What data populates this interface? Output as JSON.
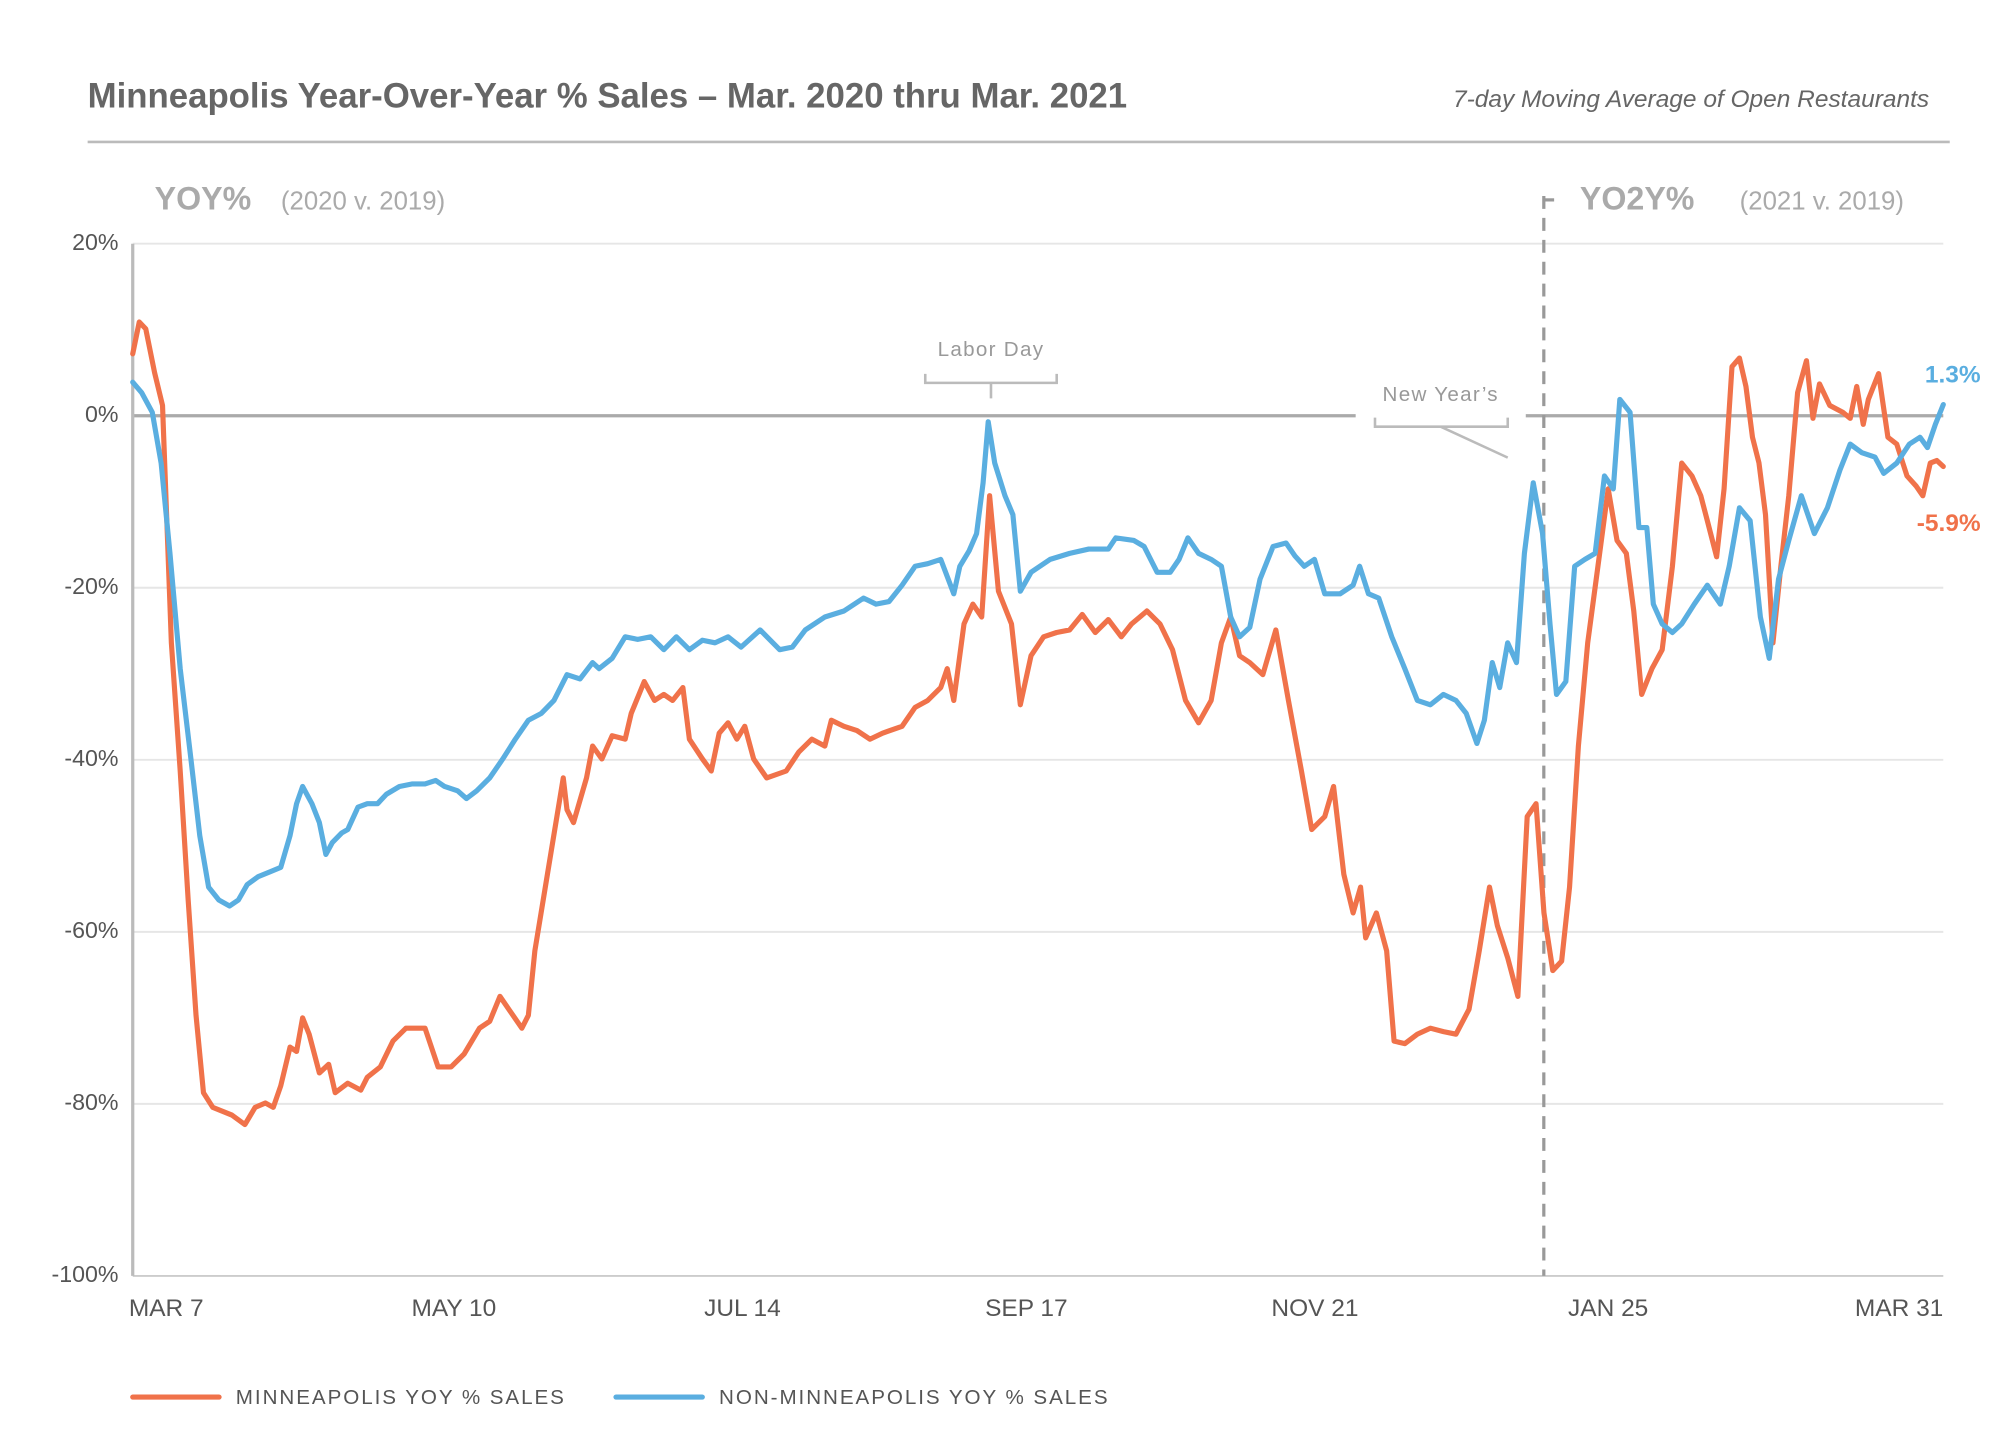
{
  "chart_data": {
    "type": "line",
    "title": "Minneapolis Year-Over-Year % Sales – Mar. 2020 thru Mar. 2021",
    "subtitle": "7-day Moving Average of Open Restaurants",
    "section_labels": [
      {
        "title": "YOY%",
        "note": "(2020 v. 2019)"
      },
      {
        "title": "YO2Y%",
        "note": "(2021 v. 2019)"
      }
    ],
    "annotations": [
      "Labor Day",
      "New Year’s"
    ],
    "xlim": [
      0,
      389
    ],
    "xticks": [
      {
        "value": 0,
        "label": "MAR 7"
      },
      {
        "value": 69,
        "label": "MAY 10"
      },
      {
        "value": 131,
        "label": "JUL 14"
      },
      {
        "value": 192,
        "label": "SEP 17"
      },
      {
        "value": 254,
        "label": "NOV 21"
      },
      {
        "value": 317,
        "label": "JAN 25"
      },
      {
        "value": 389,
        "label": "MAR 31"
      }
    ],
    "ylim": [
      -100,
      20
    ],
    "yticks": [
      {
        "value": 20,
        "label": "20%"
      },
      {
        "value": 0,
        "label": "0%"
      },
      {
        "value": -20,
        "label": "-20%"
      },
      {
        "value": -40,
        "label": "-40%"
      },
      {
        "value": -60,
        "label": "-60%"
      },
      {
        "value": -80,
        "label": "-80%"
      },
      {
        "value": -100,
        "label": "-100%"
      }
    ],
    "grid": true,
    "series": [
      {
        "name": "MINNEAPOLIS YOY % SALES",
        "color": "#f0724a",
        "end_label": "-5.9%",
        "x": [
          0,
          1.4,
          2.8,
          4.7,
          6.4,
          8.3,
          10.2,
          11.9,
          13.6,
          15.2,
          17.2,
          21.3,
          24.1,
          26.3,
          28.5,
          30.2,
          31.8,
          33.8,
          35.2,
          36.5,
          37.9,
          40.1,
          42.1,
          43.5,
          46.2,
          49.0,
          50.4,
          53.2,
          55.9,
          58.7,
          62.8,
          65.6,
          68.4,
          71.2,
          74.5,
          76.7,
          78.9,
          80.8,
          83.6,
          85.0,
          86.4,
          89.1,
          92.5,
          93.3,
          94.7,
          97.5,
          98.8,
          100.8,
          103.0,
          105.8,
          107.1,
          109.9,
          112.1,
          114.1,
          116.0,
          118.2,
          119.6,
          122.4,
          124.3,
          126.0,
          127.9,
          129.8,
          131.5,
          133.4,
          136.2,
          140.4,
          143.1,
          145.9,
          148.7,
          150.1,
          152.8,
          155.6,
          158.4,
          161.1,
          165.3,
          168.1,
          170.8,
          173.6,
          175.0,
          176.4,
          178.6,
          180.5,
          182.4,
          184.1,
          186.0,
          188.8,
          190.7,
          193.0,
          195.7,
          198.5,
          201.3,
          204.0,
          206.8,
          209.6,
          212.4,
          214.6,
          217.9,
          220.7,
          223.4,
          226.2,
          229.0,
          231.7,
          233.9,
          235.9,
          237.8,
          240.0,
          242.8,
          245.6,
          248.3,
          251.1,
          253.3,
          256.1,
          258.0,
          260.2,
          262.2,
          263.8,
          264.9,
          267.2,
          269.4,
          271.0,
          273.3,
          276.0,
          278.8,
          281.6,
          284.3,
          287.1,
          289.3,
          291.5,
          293.2,
          295.4,
          297.6,
          299.6,
          301.5,
          303.2,
          305.1,
          307.0,
          308.7,
          310.6,
          312.6,
          314.8,
          317.0,
          318.9,
          320.9,
          322.5,
          324.2,
          326.4,
          328.6,
          330.8,
          332.8,
          335.0,
          336.9,
          338.3,
          340.3,
          341.9,
          343.6,
          345.2,
          346.6,
          348.0,
          349.4,
          350.8,
          352.4,
          354.1,
          355.8,
          357.7,
          359.6,
          361.0,
          362.4,
          364.6,
          367.4,
          369.0,
          370.4,
          371.8,
          372.9,
          375.1,
          377.1,
          379.0,
          381.2,
          383.2,
          384.6,
          386.2,
          387.6,
          389
        ],
        "values": [
          7.2,
          10.9,
          10.1,
          5.0,
          1.2,
          -26.4,
          -41.3,
          -56.2,
          -69.7,
          -78.7,
          -80.4,
          -81.3,
          -82.4,
          -80.4,
          -79.9,
          -80.4,
          -77.9,
          -73.4,
          -73.9,
          -70.0,
          -71.9,
          -76.4,
          -75.4,
          -78.7,
          -77.6,
          -78.4,
          -76.9,
          -75.7,
          -72.7,
          -71.2,
          -71.2,
          -75.7,
          -75.7,
          -74.2,
          -71.2,
          -70.4,
          -67.5,
          -69.0,
          -71.2,
          -69.7,
          -62.2,
          -53.3,
          -42.1,
          -45.8,
          -47.3,
          -42.1,
          -38.4,
          -39.9,
          -37.2,
          -37.6,
          -34.6,
          -30.9,
          -33.1,
          -32.4,
          -33.1,
          -31.6,
          -37.6,
          -39.9,
          -41.3,
          -36.9,
          -35.7,
          -37.6,
          -36.1,
          -39.9,
          -42.1,
          -41.3,
          -39.1,
          -37.6,
          -38.4,
          -35.4,
          -36.1,
          -36.6,
          -37.6,
          -36.9,
          -36.1,
          -33.9,
          -33.1,
          -31.6,
          -29.4,
          -33.1,
          -24.2,
          -21.9,
          -23.4,
          -9.3,
          -20.4,
          -24.2,
          -33.6,
          -27.9,
          -25.7,
          -25.2,
          -24.9,
          -23.1,
          -25.2,
          -23.7,
          -25.7,
          -24.2,
          -22.7,
          -24.2,
          -27.2,
          -33.1,
          -35.7,
          -33.1,
          -26.4,
          -23.4,
          -27.9,
          -28.7,
          -30.1,
          -24.9,
          -33.1,
          -41.3,
          -48.1,
          -46.6,
          -43.1,
          -53.3,
          -57.8,
          -54.8,
          -60.7,
          -57.8,
          -62.2,
          -72.7,
          -73.0,
          -71.9,
          -71.2,
          -71.6,
          -71.9,
          -69.0,
          -62.2,
          -54.8,
          -59.3,
          -63.0,
          -67.5,
          -46.6,
          -45.1,
          -57.8,
          -64.5,
          -63.4,
          -54.8,
          -38.4,
          -26.4,
          -17.5,
          -8.5,
          -14.5,
          -16.0,
          -22.7,
          -32.4,
          -29.4,
          -27.2,
          -17.5,
          -5.5,
          -7.0,
          -9.3,
          -12.2,
          -16.4,
          -8.5,
          5.7,
          6.7,
          3.4,
          -2.5,
          -5.5,
          -11.5,
          -26.4,
          -17.5,
          -9.3,
          2.7,
          6.4,
          -0.3,
          3.7,
          1.2,
          0.4,
          -0.3,
          3.4,
          -1.0,
          1.9,
          4.9,
          -2.5,
          -3.3,
          -7.0,
          -8.2,
          -9.3,
          -5.5,
          -5.2,
          -5.9
        ]
      },
      {
        "name": "NON-MINNEAPOLIS YOY % SALES",
        "color": "#5aaee0",
        "end_label": "1.3%",
        "x": [
          0,
          1.9,
          4.2,
          6.1,
          8.0,
          10.2,
          12.5,
          14.4,
          16.3,
          18.5,
          20.8,
          22.7,
          24.6,
          26.9,
          29.6,
          31.8,
          33.8,
          35.2,
          36.5,
          38.5,
          40.1,
          41.5,
          42.9,
          44.9,
          46.2,
          48.4,
          50.4,
          52.6,
          54.5,
          57.3,
          60.1,
          62.8,
          65.1,
          67.0,
          69.8,
          71.7,
          73.9,
          76.7,
          79.5,
          82.2,
          85.0,
          87.8,
          90.5,
          93.3,
          96.1,
          98.8,
          100.2,
          103.0,
          105.8,
          108.5,
          111.3,
          114.1,
          116.8,
          119.6,
          122.4,
          125.1,
          127.9,
          130.7,
          134.8,
          139.0,
          141.7,
          144.5,
          148.7,
          152.8,
          157.0,
          159.7,
          162.5,
          165.3,
          168.1,
          170.8,
          173.6,
          176.4,
          177.7,
          179.7,
          181.3,
          182.7,
          183.8,
          185.2,
          187.4,
          189.1,
          190.7,
          193.0,
          197.1,
          201.3,
          205.4,
          209.6,
          211.2,
          215.1,
          217.3,
          220.1,
          222.9,
          224.8,
          226.7,
          229.0,
          231.7,
          233.9,
          235.9,
          237.8,
          240.0,
          242.2,
          245.0,
          247.8,
          249.7,
          251.7,
          253.9,
          256.1,
          259.4,
          262.2,
          263.6,
          265.5,
          267.7,
          270.5,
          273.3,
          276.0,
          278.8,
          281.6,
          284.3,
          286.5,
          288.8,
          290.4,
          292.1,
          293.7,
          295.4,
          297.3,
          299.0,
          300.9,
          302.9,
          304.5,
          305.9,
          307.9,
          309.8,
          312.0,
          314.2,
          316.2,
          318.1,
          319.5,
          321.7,
          323.6,
          325.3,
          326.7,
          328.6,
          330.8,
          332.8,
          335.5,
          338.3,
          341.1,
          343.0,
          345.2,
          347.5,
          349.7,
          351.6,
          353.6,
          355.8,
          358.5,
          361.3,
          364.1,
          366.8,
          369.0,
          371.5,
          374.3,
          376.2,
          379.0,
          381.7,
          384.0,
          385.6,
          387.3,
          389
        ],
        "values": [
          3.9,
          2.7,
          0.4,
          -5.5,
          -16.0,
          -29.4,
          -39.9,
          -48.8,
          -54.8,
          -56.3,
          -57.0,
          -56.3,
          -54.5,
          -53.6,
          -53.0,
          -52.5,
          -48.8,
          -45.1,
          -43.1,
          -45.1,
          -47.3,
          -51.0,
          -49.6,
          -48.5,
          -48.1,
          -45.5,
          -45.1,
          -45.1,
          -44.0,
          -43.1,
          -42.8,
          -42.8,
          -42.4,
          -43.1,
          -43.6,
          -44.5,
          -43.6,
          -42.1,
          -39.9,
          -37.6,
          -35.4,
          -34.6,
          -33.1,
          -30.1,
          -30.6,
          -28.7,
          -29.4,
          -28.2,
          -25.7,
          -26.0,
          -25.7,
          -27.2,
          -25.7,
          -27.2,
          -26.1,
          -26.4,
          -25.7,
          -26.9,
          -24.9,
          -27.2,
          -26.9,
          -24.9,
          -23.4,
          -22.7,
          -21.2,
          -21.9,
          -21.6,
          -19.7,
          -17.5,
          -17.2,
          -16.7,
          -20.7,
          -17.5,
          -15.7,
          -13.7,
          -7.8,
          -0.7,
          -5.5,
          -9.3,
          -11.5,
          -20.4,
          -18.2,
          -16.7,
          -16.0,
          -15.5,
          -15.5,
          -14.2,
          -14.5,
          -15.2,
          -18.2,
          -18.2,
          -16.7,
          -14.2,
          -16.0,
          -16.7,
          -17.5,
          -23.4,
          -25.7,
          -24.6,
          -19.0,
          -15.2,
          -14.8,
          -16.3,
          -17.5,
          -16.7,
          -20.7,
          -20.7,
          -19.7,
          -17.5,
          -20.7,
          -21.2,
          -25.7,
          -29.4,
          -33.1,
          -33.6,
          -32.4,
          -33.1,
          -34.6,
          -38.1,
          -35.4,
          -28.7,
          -31.6,
          -26.4,
          -28.7,
          -16.0,
          -7.8,
          -13.7,
          -24.2,
          -32.4,
          -30.9,
          -17.5,
          -16.7,
          -16.0,
          -7.0,
          -8.5,
          1.9,
          0.4,
          -13.0,
          -13.0,
          -21.9,
          -24.2,
          -25.2,
          -24.2,
          -21.9,
          -19.7,
          -21.9,
          -17.5,
          -10.7,
          -12.2,
          -23.4,
          -28.2,
          -19.0,
          -14.5,
          -9.3,
          -13.7,
          -10.7,
          -6.3,
          -3.3,
          -4.3,
          -4.8,
          -6.7,
          -5.5,
          -3.3,
          -2.5,
          -3.7,
          -1.0,
          1.3
        ]
      }
    ]
  }
}
